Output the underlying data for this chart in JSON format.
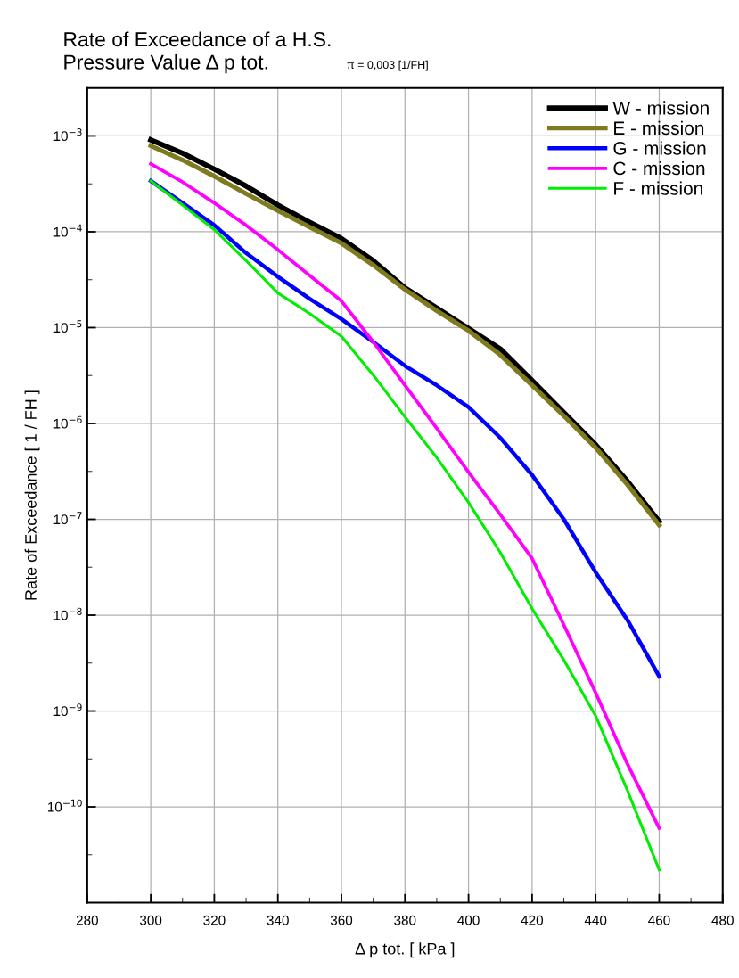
{
  "chart_data": {
    "type": "line",
    "title": "Rate of Exceedance of a H.S.\nPressure Value Δ p tot.",
    "subtitle": "π = 0,003 [1/FH]",
    "xlabel": "Δ p tot. [ kPa ]",
    "ylabel": "Rate of Exceedance [ 1 / FH ]",
    "x": [
      300,
      310,
      320,
      330,
      340,
      350,
      360,
      370,
      380,
      390,
      400,
      410,
      420,
      430,
      440,
      450,
      460
    ],
    "series": [
      {
        "name": "W - mission",
        "color": "#000000",
        "values": [
          0.00091,
          0.00066,
          0.00045,
          0.0003,
          0.00019,
          0.000126,
          8.5e-05,
          5e-05,
          2.6e-05,
          1.6e-05,
          9.8e-06,
          6e-06,
          2.8e-06,
          1.3e-06,
          6e-07,
          2.5e-07,
          9.5e-08
        ]
      },
      {
        "name": "E - mission",
        "color": "#7f7a1e",
        "values": [
          0.00079,
          0.00056,
          0.00038,
          0.00025,
          0.000166,
          0.000112,
          7.6e-05,
          4.5e-05,
          2.5e-05,
          1.5e-05,
          9.3e-06,
          5.2e-06,
          2.5e-06,
          1.2e-06,
          5.6e-07,
          2.3e-07,
          8.7e-08
        ]
      },
      {
        "name": "G - mission",
        "color": "#0000ff",
        "values": [
          0.00034,
          0.0002,
          0.000117,
          6e-05,
          3.4e-05,
          2e-05,
          1.23e-05,
          7.1e-06,
          4e-06,
          2.5e-06,
          1.48e-06,
          7.1e-07,
          2.9e-07,
          1e-07,
          2.8e-08,
          8.9e-09,
          2.3e-09
        ]
      },
      {
        "name": "C - mission",
        "color": "#ff00ff",
        "values": [
          0.00051,
          0.00033,
          0.0002,
          0.000117,
          6.5e-05,
          3.5e-05,
          1.9e-05,
          7.1e-06,
          2.5e-06,
          8.9e-07,
          3.1e-07,
          1.12e-07,
          3.9e-08,
          7.9e-09,
          1.55e-09,
          2.8e-10,
          6e-11
        ]
      },
      {
        "name": "F - mission",
        "color": "#00ee00",
        "values": [
          0.00034,
          0.00019,
          0.000105,
          5e-05,
          2.3e-05,
          1.4e-05,
          8.1e-06,
          3.2e-06,
          1.17e-06,
          4.4e-07,
          1.5e-07,
          4.5e-08,
          1.17e-08,
          3.4e-09,
          8.9e-10,
          1.48e-10,
          2.2e-11
        ]
      }
    ],
    "xlim": [
      280,
      480
    ],
    "xticks": [
      280,
      300,
      320,
      340,
      360,
      380,
      400,
      420,
      440,
      460,
      480
    ],
    "log": "y",
    "ylim": [
      1e-11,
      0.003162
    ],
    "yticks": [
      {
        "value": 0.001,
        "label": "10$^{−3}$"
      },
      {
        "value": 0.0001,
        "label": "10$^{−4}$"
      },
      {
        "value": 1e-05,
        "label": "10$^{−5}$"
      },
      {
        "value": 1e-06,
        "label": "10$^{−6}$"
      },
      {
        "value": 1e-07,
        "label": "10$^{−7}$"
      },
      {
        "value": 1e-08,
        "label": "10$^{−8}$"
      },
      {
        "value": 1e-09,
        "label": "10$^{−9}$"
      },
      {
        "value": 1e-10,
        "label": "10$^{−10}$"
      }
    ],
    "grid": true,
    "legend": "top right",
    "marker": "none",
    "line_style": "solid"
  }
}
